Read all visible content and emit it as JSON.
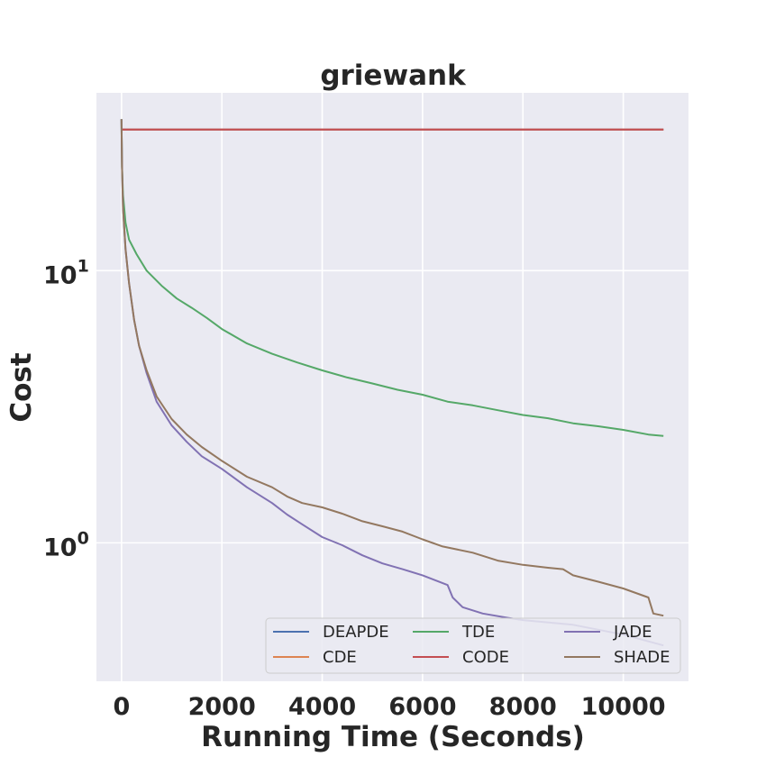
{
  "chart_data": {
    "type": "line",
    "title": "griewank",
    "xlabel": "Running Time (Seconds)",
    "ylabel": "Cost",
    "xlim": [
      -500,
      11300
    ],
    "ylim": [
      0.31,
      45
    ],
    "yscale": "log",
    "grid": true,
    "legend_position": "lower-right",
    "legend_columns": 3,
    "x_ticks": [
      {
        "value": 0,
        "label": "0"
      },
      {
        "value": 2000,
        "label": "2000"
      },
      {
        "value": 4000,
        "label": "4000"
      },
      {
        "value": 6000,
        "label": "6000"
      },
      {
        "value": 8000,
        "label": "8000"
      },
      {
        "value": 10000,
        "label": "10000"
      }
    ],
    "y_ticks": [
      {
        "value": 1,
        "base": "10",
        "exp": "0"
      },
      {
        "value": 10,
        "base": "10",
        "exp": "1"
      }
    ],
    "colors": {
      "background": "#eaeaf2",
      "grid": "#ffffff"
    },
    "series": [
      {
        "name": "DEAPDE",
        "color": "#4c72b0",
        "points": [
          [
            0,
            33
          ],
          [
            10800,
            33
          ]
        ]
      },
      {
        "name": "CDE",
        "color": "#dd8452",
        "points": [
          [
            0,
            33
          ],
          [
            10800,
            33
          ]
        ]
      },
      {
        "name": "TDE",
        "color": "#55a868",
        "points": [
          [
            0,
            36
          ],
          [
            10,
            24
          ],
          [
            30,
            19
          ],
          [
            80,
            15
          ],
          [
            150,
            13
          ],
          [
            300,
            11.5
          ],
          [
            500,
            10
          ],
          [
            800,
            8.8
          ],
          [
            1100,
            7.9
          ],
          [
            1400,
            7.3
          ],
          [
            1700,
            6.7
          ],
          [
            2000,
            6.1
          ],
          [
            2500,
            5.4
          ],
          [
            3000,
            4.95
          ],
          [
            3500,
            4.6
          ],
          [
            4000,
            4.3
          ],
          [
            4500,
            4.05
          ],
          [
            5000,
            3.85
          ],
          [
            5500,
            3.65
          ],
          [
            6000,
            3.5
          ],
          [
            6500,
            3.3
          ],
          [
            7000,
            3.2
          ],
          [
            7500,
            3.07
          ],
          [
            8000,
            2.95
          ],
          [
            8500,
            2.87
          ],
          [
            9000,
            2.75
          ],
          [
            9500,
            2.68
          ],
          [
            10000,
            2.6
          ],
          [
            10500,
            2.5
          ],
          [
            10800,
            2.47
          ]
        ]
      },
      {
        "name": "CODE",
        "color": "#c44e52",
        "points": [
          [
            0,
            33
          ],
          [
            10800,
            33
          ]
        ]
      },
      {
        "name": "JADE",
        "color": "#8172b3",
        "points": [
          [
            0,
            36
          ],
          [
            10,
            24
          ],
          [
            30,
            17
          ],
          [
            80,
            12
          ],
          [
            150,
            9
          ],
          [
            250,
            6.6
          ],
          [
            350,
            5.3
          ],
          [
            500,
            4.2
          ],
          [
            700,
            3.3
          ],
          [
            1000,
            2.7
          ],
          [
            1300,
            2.35
          ],
          [
            1600,
            2.08
          ],
          [
            2000,
            1.87
          ],
          [
            2500,
            1.6
          ],
          [
            3000,
            1.4
          ],
          [
            3300,
            1.27
          ],
          [
            3600,
            1.17
          ],
          [
            4000,
            1.05
          ],
          [
            4400,
            0.98
          ],
          [
            4800,
            0.9
          ],
          [
            5200,
            0.84
          ],
          [
            5600,
            0.8
          ],
          [
            6000,
            0.76
          ],
          [
            6500,
            0.7
          ],
          [
            6600,
            0.63
          ],
          [
            6800,
            0.58
          ],
          [
            7200,
            0.55
          ],
          [
            7700,
            0.53
          ],
          [
            8000,
            0.52
          ],
          [
            9000,
            0.5
          ],
          [
            10000,
            0.46
          ],
          [
            10800,
            0.42
          ]
        ]
      },
      {
        "name": "SHADE",
        "color": "#937860",
        "points": [
          [
            0,
            36
          ],
          [
            10,
            24
          ],
          [
            30,
            17
          ],
          [
            80,
            12
          ],
          [
            150,
            9
          ],
          [
            250,
            6.6
          ],
          [
            350,
            5.3
          ],
          [
            500,
            4.3
          ],
          [
            700,
            3.45
          ],
          [
            1000,
            2.85
          ],
          [
            1300,
            2.5
          ],
          [
            1600,
            2.25
          ],
          [
            2000,
            2.0
          ],
          [
            2500,
            1.75
          ],
          [
            3000,
            1.6
          ],
          [
            3300,
            1.48
          ],
          [
            3600,
            1.4
          ],
          [
            4000,
            1.35
          ],
          [
            4400,
            1.28
          ],
          [
            4800,
            1.2
          ],
          [
            5200,
            1.15
          ],
          [
            5600,
            1.1
          ],
          [
            6000,
            1.03
          ],
          [
            6400,
            0.97
          ],
          [
            7000,
            0.92
          ],
          [
            7500,
            0.86
          ],
          [
            8000,
            0.83
          ],
          [
            8500,
            0.81
          ],
          [
            8800,
            0.8
          ],
          [
            9000,
            0.76
          ],
          [
            9500,
            0.72
          ],
          [
            10000,
            0.68
          ],
          [
            10500,
            0.63
          ],
          [
            10600,
            0.55
          ],
          [
            10800,
            0.54
          ]
        ]
      }
    ]
  }
}
